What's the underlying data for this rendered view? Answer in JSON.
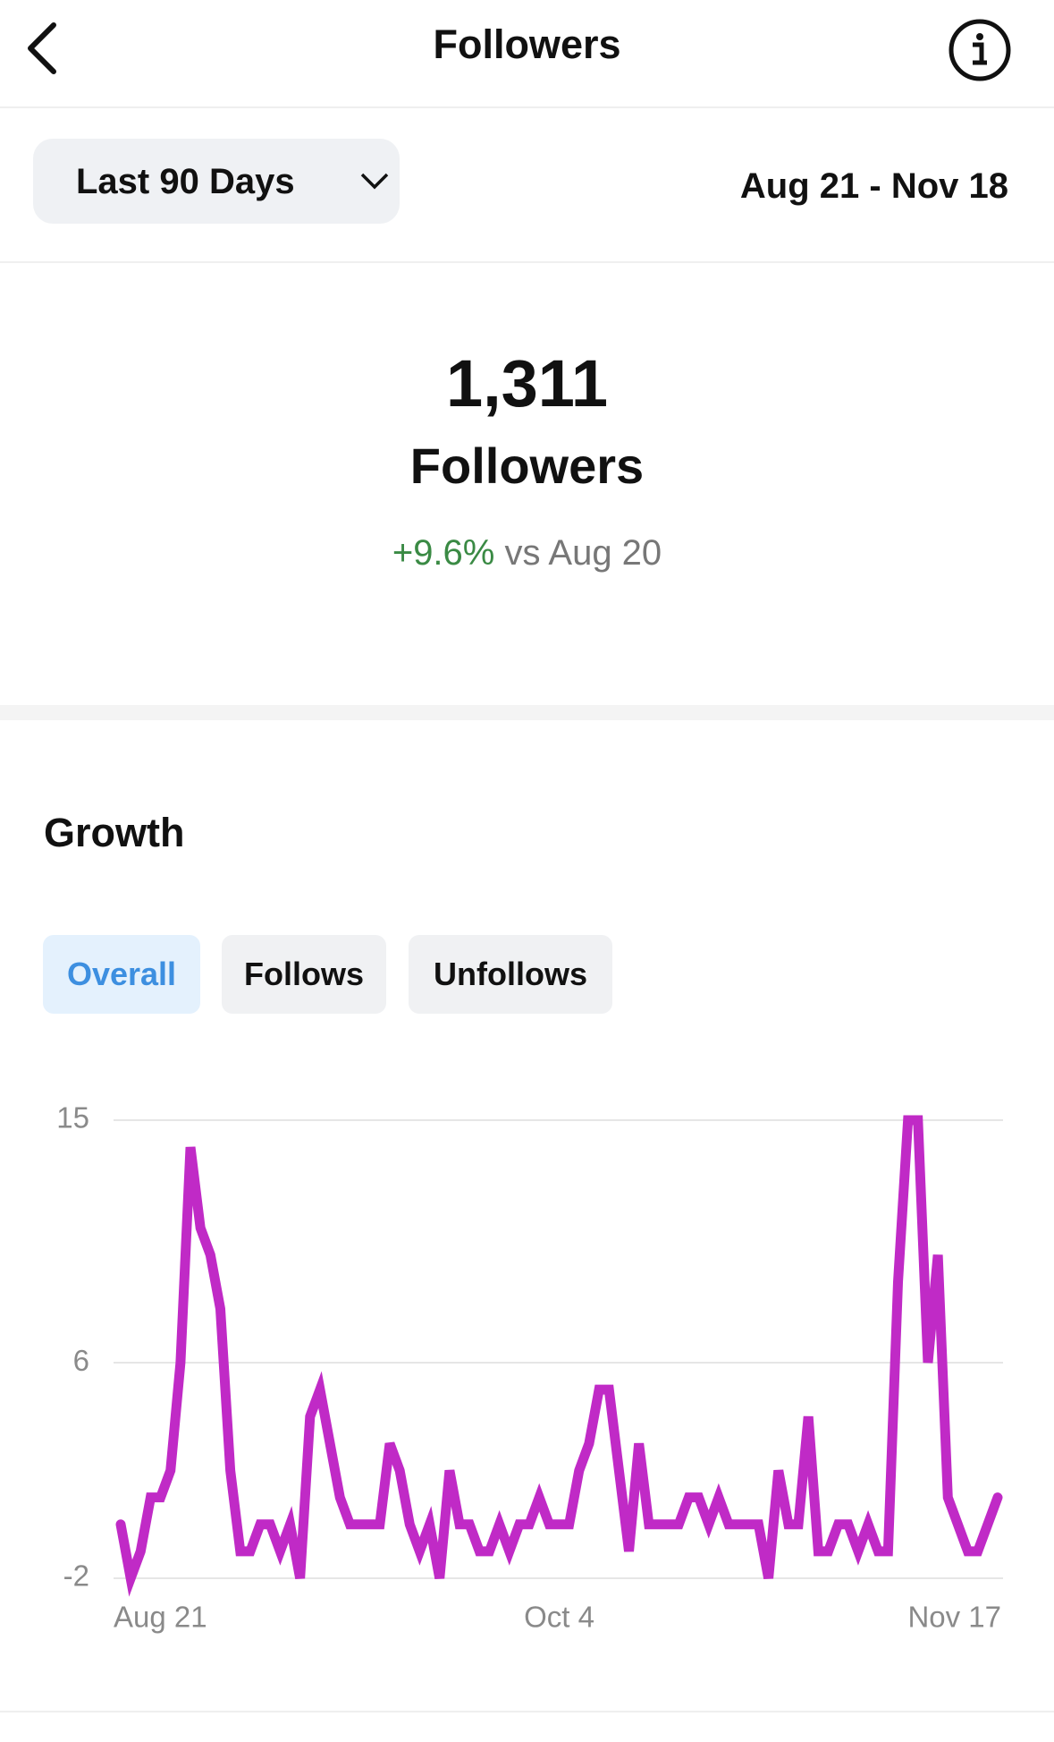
{
  "header": {
    "title": "Followers"
  },
  "filter": {
    "label": "Last 90 Days"
  },
  "date_range": "Aug 21 - Nov 18",
  "summary": {
    "value": "1,311",
    "label": "Followers",
    "change": "+9.6%",
    "comparison": "vs Aug 20"
  },
  "growth": {
    "title": "Growth",
    "tabs": [
      "Overall",
      "Follows",
      "Unfollows"
    ]
  },
  "chart_data": {
    "type": "line",
    "x": [
      "Aug 21",
      null,
      null,
      null,
      null,
      null,
      null,
      null,
      null,
      null,
      null,
      null,
      null,
      null,
      null,
      null,
      null,
      null,
      null,
      null,
      null,
      null,
      null,
      null,
      null,
      null,
      null,
      null,
      null,
      null,
      null,
      null,
      null,
      null,
      null,
      null,
      null,
      null,
      null,
      null,
      null,
      null,
      null,
      null,
      "Oct 4",
      null,
      null,
      null,
      null,
      null,
      null,
      null,
      null,
      null,
      null,
      null,
      null,
      null,
      null,
      null,
      null,
      null,
      null,
      null,
      null,
      null,
      null,
      null,
      null,
      null,
      null,
      null,
      null,
      null,
      null,
      null,
      null,
      null,
      null,
      null,
      null,
      null,
      null,
      null,
      null,
      null,
      null,
      null,
      "Nov 17"
    ],
    "series": [
      {
        "name": "Overall",
        "color": "#c02ac6",
        "values": [
          0,
          -2,
          -1,
          1,
          1,
          2,
          6,
          14,
          11,
          10,
          8,
          2,
          -1,
          -1,
          0,
          0,
          -1,
          0,
          -2,
          4,
          5,
          3,
          1,
          0,
          0,
          0,
          0,
          3,
          2,
          0,
          -1,
          0,
          -2,
          2,
          0,
          0,
          -1,
          -1,
          0,
          -1,
          0,
          0,
          1,
          0,
          0,
          0,
          2,
          3,
          5,
          5,
          2,
          -1,
          3,
          0,
          0,
          0,
          0,
          1,
          1,
          0,
          1,
          0,
          0,
          0,
          0,
          -2,
          2,
          0,
          0,
          4,
          -1,
          -1,
          0,
          0,
          -1,
          0,
          -1,
          -1,
          9,
          15,
          15,
          6,
          10,
          1,
          0,
          -1,
          -1,
          0,
          1
        ]
      }
    ],
    "ylim": [
      -2,
      15
    ],
    "yticks": [
      -2,
      6,
      15
    ],
    "grid": true
  }
}
